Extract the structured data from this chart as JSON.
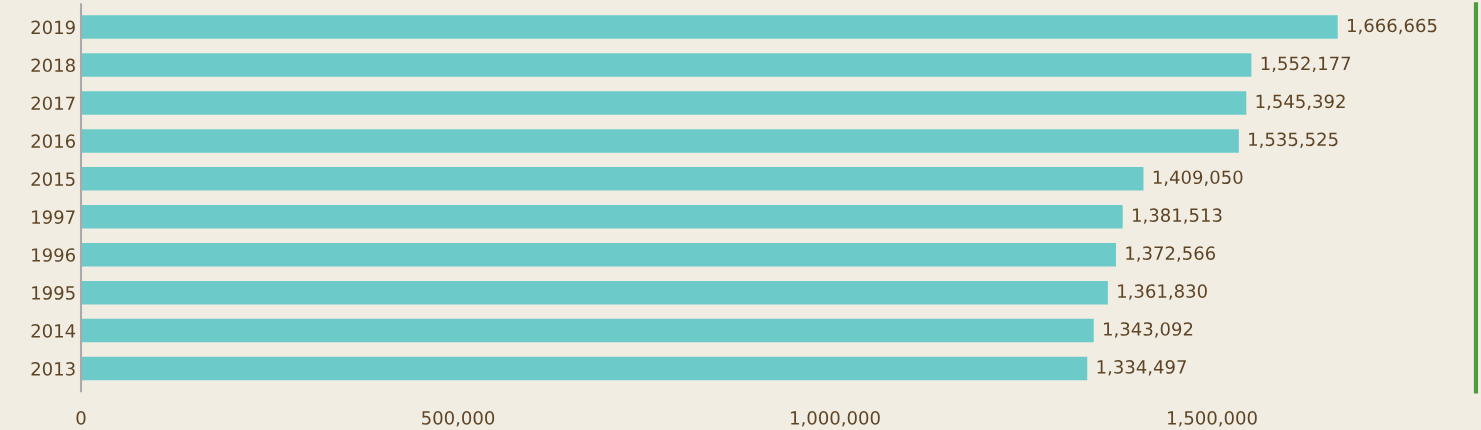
{
  "chart_data": {
    "type": "bar",
    "orientation": "horizontal",
    "categories": [
      "2019",
      "2018",
      "2017",
      "2016",
      "2015",
      "1997",
      "1996",
      "1995",
      "2014",
      "2013"
    ],
    "values": [
      1666665,
      1552177,
      1545392,
      1535525,
      1409050,
      1381513,
      1372566,
      1361830,
      1343092,
      1334497
    ],
    "color": "#6ccbc9",
    "xlim": [
      0,
      1850000
    ],
    "xticks": [
      0,
      {
        "value": 500000,
        "label": "500,000"
      },
      {
        "value": 1000000,
        "label": "1,000,000"
      },
      {
        "value": 1500000,
        "label": "1,500,000"
      }
    ],
    "value_labels": [
      "1,666,665",
      "1,552,177",
      "1,545,392",
      "1,535,525",
      "1,409,050",
      "1,381,513",
      "1,372,566",
      "1,361,830",
      "1,343,092",
      "1,334,497"
    ],
    "grid": false
  }
}
